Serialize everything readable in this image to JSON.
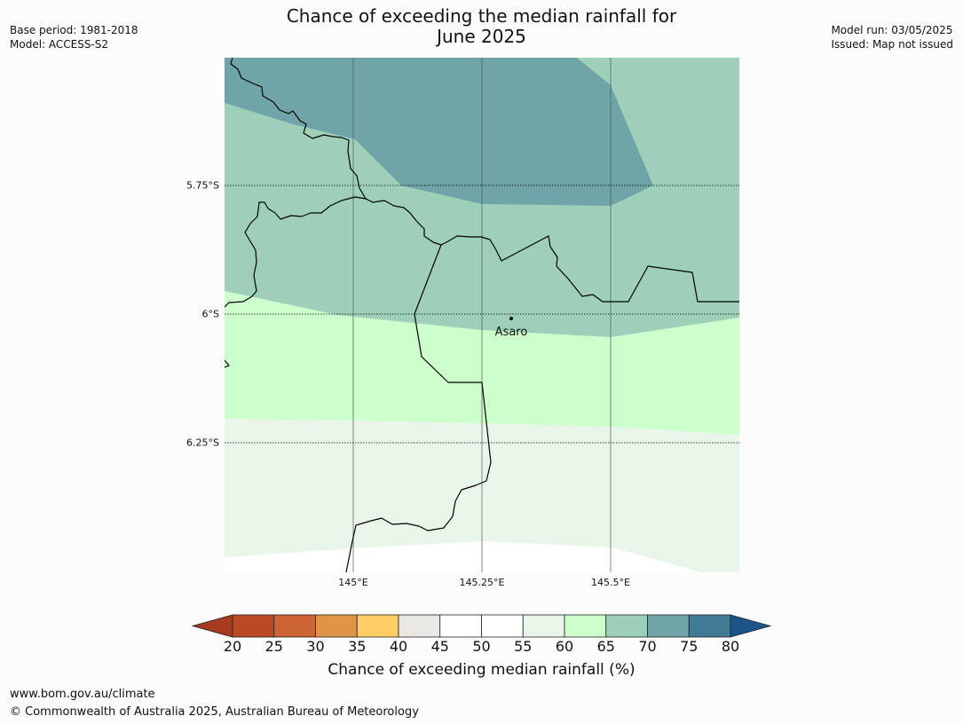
{
  "title_line1": "Chance of exceeding the median rainfall for",
  "title_line2": "June 2025",
  "meta_left": [
    "Base period: 1981-2018",
    "Model: ACCESS-S2"
  ],
  "meta_right": [
    "Model run: 03/05/2025",
    "Issued: Map not issued"
  ],
  "lat_labels": [
    "5.75°S",
    "6°S",
    "6.25°S"
  ],
  "lon_labels": [
    "145°E",
    "145.25°E",
    "145.5°E"
  ],
  "place": {
    "name": "Asaro",
    "lon": 145.3,
    "lat": -6.01
  },
  "legend": {
    "label": "Chance of exceeding median rainfall (%)",
    "ticks": [
      "20",
      "25",
      "30",
      "35",
      "40",
      "45",
      "50",
      "55",
      "60",
      "65",
      "70",
      "75",
      "80"
    ],
    "colors": [
      "#a83c22",
      "#b94a24",
      "#cc6433",
      "#e09446",
      "#ffcc66",
      "#e9e8e4",
      "#ffffff",
      "#ffffff",
      "#eaf5ea",
      "#ccffcc",
      "#9ed0b9",
      "#6fa5a8",
      "#417a95",
      "#1a5489"
    ]
  },
  "region_colors": {
    "band_70_75": "#6fa5a8",
    "band_65_70": "#9ed0b9",
    "band_60_65": "#ccffcc",
    "band_55_60": "#eaf5ea",
    "band_50_55": "#ffffff"
  },
  "footer_url": "www.bom.gov.au/climate",
  "footer_copyright": "© Commonwealth of Australia 2025, Australian Bureau of Meteorology"
}
